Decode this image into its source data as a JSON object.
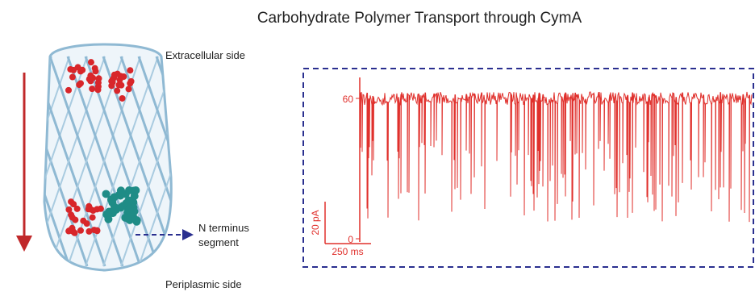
{
  "title": "Carbohydrate Polymer Transport through CymA",
  "labels": {
    "extracellular": "Extracellular side",
    "n_terminus": [
      "N terminus",
      "segment"
    ],
    "periplasmic": "Periplasmic side"
  },
  "trace": {
    "yticks": [
      60,
      0
    ],
    "scale_current": "20 pA",
    "scale_time": "250 ms"
  }
}
